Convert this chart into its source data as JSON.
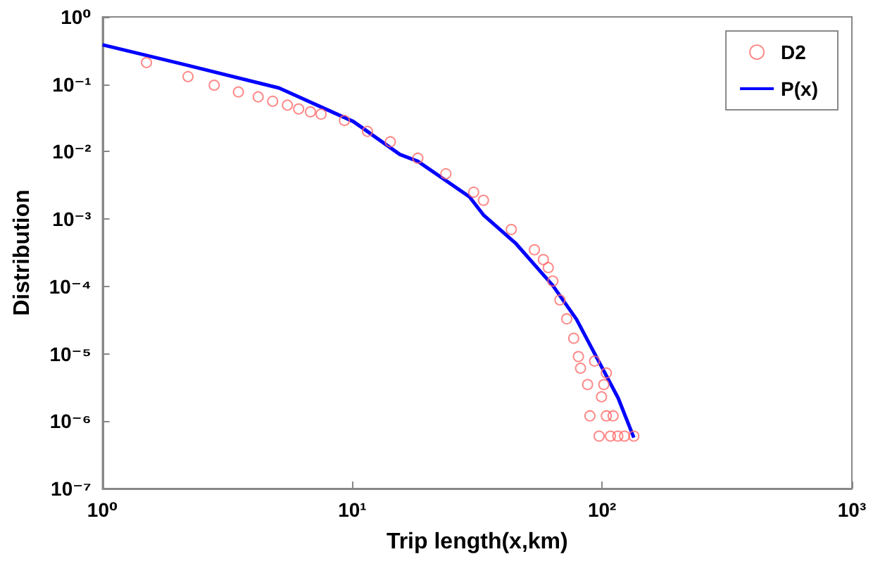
{
  "chart_data": {
    "type": "scatter",
    "xlabel": "Trip length(x,km)",
    "ylabel": "Distribution",
    "log": "xy",
    "grid": false,
    "legend": "top right",
    "xlim": [
      1,
      1000
    ],
    "xticks": [
      {
        "value": 1,
        "label": "10⁰"
      },
      {
        "value": 10,
        "label": "10¹"
      },
      {
        "value": 100,
        "label": "10²"
      },
      {
        "value": 1000,
        "label": "10³"
      }
    ],
    "ylim": [
      1e-07,
      1
    ],
    "yticks": [
      {
        "value": 1e-07,
        "label": "10⁻⁷"
      },
      {
        "value": 1e-06,
        "label": "10⁻⁶"
      },
      {
        "value": 1e-05,
        "label": "10⁻⁵"
      },
      {
        "value": 0.0001,
        "label": "10⁻⁴"
      },
      {
        "value": 0.001,
        "label": "10⁻³"
      },
      {
        "value": 0.01,
        "label": "10⁻²"
      },
      {
        "value": 0.1,
        "label": "10⁻¹"
      },
      {
        "value": 1,
        "label": "10⁰"
      }
    ],
    "series": [
      {
        "name": "D2",
        "marker": "circle",
        "color": "#ff6b6b",
        "x": [
          1.5,
          2.2,
          2.8,
          3.5,
          4.2,
          4.8,
          5.5,
          6.1,
          6.8,
          7.5,
          9.3,
          11.5,
          14.2,
          18.3,
          23.7,
          30.6,
          33.5,
          43.3,
          53.6,
          58.2,
          60.9,
          63.5,
          67.8,
          72.2,
          77,
          80.4,
          82,
          87.5,
          89.4,
          93.3,
          97.3,
          99.5,
          101.6,
          104,
          104,
          108,
          110.7,
          115.6,
          123,
          134
        ],
        "values": [
          0.21,
          0.13,
          0.097,
          0.077,
          0.065,
          0.056,
          0.049,
          0.043,
          0.039,
          0.036,
          0.029,
          0.02,
          0.014,
          0.008,
          0.0047,
          0.0025,
          0.0019,
          0.0007,
          0.00035,
          0.00025,
          0.00019,
          0.00012,
          6.3e-05,
          3.3e-05,
          1.7e-05,
          9.1e-06,
          6.1e-06,
          3.5e-06,
          1.2e-06,
          7.8e-06,
          6e-07,
          2.3e-06,
          3.5e-06,
          5.2e-06,
          1.2e-06,
          6e-07,
          1.2e-06,
          6e-07,
          6e-07,
          6e-07
        ]
      },
      {
        "name": "P(x)",
        "type": "line",
        "marker": "none",
        "line_style": "solid",
        "color": "#0000ff",
        "x": [
          1,
          2.18,
          5.09,
          10.1,
          15.5,
          18.3,
          29.4,
          33.5,
          45,
          63.5,
          79,
          97,
          116,
          134
        ],
        "values": [
          0.385,
          0.192,
          0.088,
          0.028,
          0.0091,
          0.0072,
          0.00215,
          0.00115,
          0.00044,
          0.000103,
          3.25e-05,
          7.7e-06,
          2.2e-06,
          5.7e-07
        ]
      }
    ]
  }
}
